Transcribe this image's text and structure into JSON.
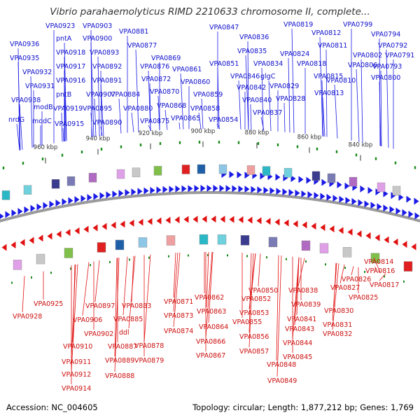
{
  "title": "Vibrio parahaemolyticus RIMD 2210633 chromosome II, complete...",
  "footer": {
    "accession": "Accession: NC_004605",
    "summary": "Topology: circular; Length: 1,877,212 bp; Genes: 1,769"
  },
  "colors": {
    "forward": "#1a1ae6",
    "reverse": "#e01010",
    "backbone": "#9a9a9a",
    "tick": "#1a8a1a"
  },
  "ticks": [
    {
      "label": "960 kbp",
      "pos": 960
    },
    {
      "label": "940 kbp",
      "pos": 940
    },
    {
      "label": "920 kbp",
      "pos": 920
    },
    {
      "label": "900 kbp",
      "pos": 900
    },
    {
      "label": "880 kbp",
      "pos": 880
    },
    {
      "label": "860 kbp",
      "pos": 860
    },
    {
      "label": "840 kbp",
      "pos": 840
    }
  ],
  "forward_genes": [
    "VPA0923",
    "VPA0903",
    "VPA0936",
    "pntA",
    "VPA0900",
    "VPA0881",
    "VPA0918",
    "VPA0893",
    "VPA0935",
    "VPA0877",
    "VPA0917",
    "VPA0892",
    "VPA0932",
    "VPA0916",
    "VPA0891",
    "VPA0931",
    "pntB",
    "VPA0907",
    "VPA0884",
    "VPA0938",
    "modB",
    "VPA0919",
    "VPA0895",
    "VPA0880",
    "nrdG",
    "modC",
    "VPA0915",
    "VPA0890",
    "VPA0876",
    "VPA0875",
    "VPA0869",
    "VPA0872",
    "VPA0870",
    "VPA0868",
    "VPA0861",
    "VPA0860",
    "VPA0865",
    "VPA0859",
    "VPA0858",
    "VPA0854",
    "VPA0847",
    "VPA0836",
    "VPA0851",
    "VPA0846",
    "VPA0835",
    "VPA0842",
    "VPA0840",
    "VPA0834",
    "glgC",
    "VPA0837",
    "VPA0829",
    "VPA0828",
    "VPA0824",
    "VPA0819",
    "VPA0812",
    "VPA0818",
    "VPA0811",
    "VPA0815",
    "VPA0813",
    "VPA0810",
    "VPA0799",
    "VPA0794",
    "VPA0802",
    "VPA0792",
    "VPA0806",
    "VPA0791",
    "VPA0793",
    "VPA0800"
  ],
  "reverse_genes": [
    "VPA0925",
    "VPA0928",
    "VPA0897",
    "VPA0906",
    "VPA0902",
    "VPA0910",
    "VPA0911",
    "VPA0912",
    "VPA0914",
    "VPA0883",
    "VPA0885",
    "ddl",
    "VPA0887",
    "VPA0889",
    "VPA0888",
    "VPA0878",
    "VPA0879",
    "VPA0871",
    "VPA0873",
    "VPA0874",
    "VPA0862",
    "VPA0863",
    "VPA0864",
    "VPA0866",
    "VPA0867",
    "VPA0850",
    "VPA0852",
    "VPA0853",
    "VPA0855",
    "VPA0856",
    "VPA0857",
    "VPA0838",
    "VPA0839",
    "VPA0841",
    "VPA0843",
    "VPA0844",
    "VPA0845",
    "VPA0848",
    "VPA0849",
    "VPA0814",
    "VPA0816",
    "VPA0826",
    "VPA0827",
    "VPA0817",
    "VPA0825",
    "VPA0830",
    "VPA0831",
    "VPA0832"
  ]
}
